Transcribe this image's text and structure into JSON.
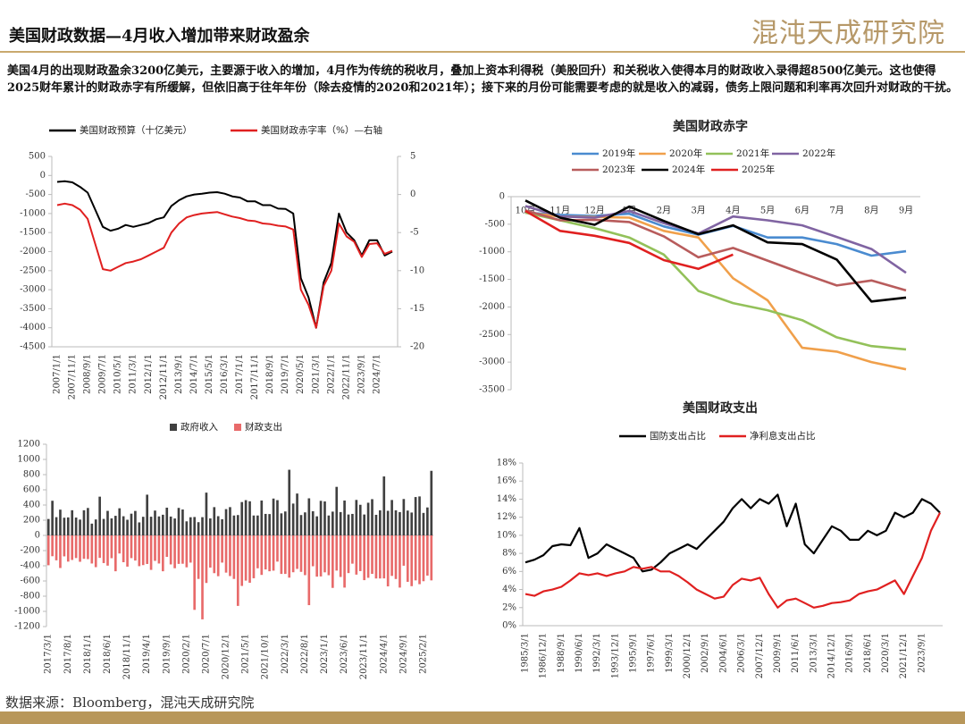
{
  "header": {
    "title": "美国财政数据—4月收入增加带来财政盈余",
    "logo": "混沌天成研究院"
  },
  "summary": "美国4月的出现财政盈余3200亿美元，主要源于收入的增加，4月作为传统的税收月，叠加上资本利得税（美股回升）和关税收入使得本月的财政收入录得超8500亿美元。这也使得2025财年累计的财政赤字有所缓解，但依旧高于往年年份（除去疫情的2020和2021年）；接下来的月份可能需要考虑的就是收入的减弱，债务上限问题和利率再次回升对财政的干扰。",
  "source": "数据来源：Bloomberg，混沌天成研究院",
  "chart_data": [
    {
      "type": "line",
      "categories": [
        "2007/1/1",
        null,
        "2007/11/1",
        null,
        "2008/9/1",
        null,
        "2009/7/1",
        null,
        "2010/5/1",
        null,
        "2011/3/1",
        null,
        "2012/1/1",
        null,
        "2012/11/1",
        null,
        "2013/9/1",
        null,
        "2014/7/1",
        null,
        "2015/5/1",
        null,
        "2016/3/1",
        null,
        "2017/1/1",
        null,
        "2017/11/1",
        null,
        "2018/9/1",
        null,
        "2019/7/1",
        null,
        "2020/5/1",
        null,
        "2021/3/1",
        null,
        "2022/1/1",
        null,
        "2022/11/1",
        null,
        "2023/9/1",
        null,
        "2024/7/1",
        null,
        null
      ],
      "series": [
        {
          "name": "美国财政预算（十亿美元）",
          "color": "#000000",
          "values": [
            -170,
            -150,
            -180,
            -300,
            -450,
            -900,
            -1350,
            -1450,
            -1400,
            -1300,
            -1350,
            -1300,
            -1250,
            -1150,
            -1100,
            -800,
            -650,
            -550,
            -500,
            -480,
            -450,
            -440,
            -480,
            -550,
            -580,
            -680,
            -680,
            -780,
            -780,
            -870,
            -880,
            -1000,
            -2700,
            -3200,
            -4000,
            -2800,
            -2300,
            -1000,
            -1500,
            -1700,
            -2100,
            -1700,
            -1700,
            -2100,
            -2000
          ]
        },
        {
          "name": "美国财政赤字率（%）—右轴",
          "color": "#e02020",
          "axis": "y2",
          "values": [
            -1.4,
            -1.2,
            -1.4,
            -2.0,
            -3.2,
            -6.5,
            -9.8,
            -10.0,
            -9.5,
            -9.0,
            -8.8,
            -8.5,
            -8.0,
            -7.5,
            -7.0,
            -5.0,
            -3.8,
            -3.0,
            -2.7,
            -2.5,
            -2.4,
            -2.3,
            -2.6,
            -2.9,
            -3.1,
            -3.4,
            -3.5,
            -3.8,
            -3.9,
            -4.1,
            -4.2,
            -4.6,
            -12.5,
            -14.5,
            -17.5,
            -12.0,
            -10.0,
            -3.8,
            -5.5,
            -6.2,
            -8.2,
            -6.5,
            -6.4,
            -7.8,
            -7.4
          ]
        }
      ],
      "ylim": [
        -4500,
        500
      ],
      "yticks": [
        500,
        0,
        -500,
        -1000,
        -1500,
        -2000,
        -2500,
        -3000,
        -3500,
        -4000,
        -4500
      ],
      "y2lim": [
        -20,
        5
      ],
      "y2ticks": [
        5,
        0,
        -5,
        -10,
        -15,
        -20
      ]
    },
    {
      "type": "line",
      "title": "美国财政赤字",
      "categories": [
        "10月",
        "11月",
        "12月",
        "1月",
        "2月",
        "3月",
        "4月",
        "5月",
        "6月",
        "7月",
        "8月",
        "9月"
      ],
      "series": [
        {
          "name": "2019年",
          "color": "#4a8bd0",
          "values": [
            -290,
            -330,
            -350,
            -310,
            -540,
            -690,
            -530,
            -740,
            -740,
            -860,
            -1070,
            -990
          ]
        },
        {
          "name": "2020年",
          "color": "#f0a04b",
          "values": [
            -290,
            -360,
            -370,
            -380,
            -620,
            -740,
            -1480,
            -1880,
            -2740,
            -2810,
            -3000,
            -3130
          ]
        },
        {
          "name": "2021年",
          "color": "#93c15a",
          "values": [
            -290,
            -430,
            -570,
            -740,
            -1050,
            -1710,
            -1930,
            -2060,
            -2240,
            -2550,
            -2710,
            -2770
          ]
        },
        {
          "name": "2022年",
          "color": "#8064a2",
          "values": [
            -170,
            -360,
            -380,
            -260,
            -480,
            -670,
            -360,
            -430,
            -520,
            -730,
            -950,
            -1380
          ]
        },
        {
          "name": "2023年",
          "color": "#b85c5c",
          "values": [
            -250,
            -430,
            -420,
            -460,
            -720,
            -1100,
            -930,
            -1160,
            -1390,
            -1610,
            -1520,
            -1700
          ]
        },
        {
          "name": "2024年",
          "color": "#000000",
          "values": [
            -70,
            -380,
            -510,
            -180,
            -440,
            -680,
            -520,
            -830,
            -860,
            -1140,
            -1900,
            -1830
          ]
        },
        {
          "name": "2025年",
          "color": "#e02020",
          "values": [
            -260,
            -620,
            -710,
            -840,
            -1150,
            -1310,
            -1050,
            null,
            null,
            null,
            null,
            null
          ]
        }
      ],
      "ylim": [
        -3500,
        0
      ],
      "yticks": [
        0,
        -500,
        -1000,
        -1500,
        -2000,
        -2500,
        -3000,
        -3500
      ]
    },
    {
      "type": "bar",
      "categories": [
        "2017/3/1",
        null,
        null,
        null,
        null,
        "2017/8/1",
        null,
        null,
        null,
        null,
        "2018/1/1",
        null,
        null,
        null,
        null,
        "2018/6/1",
        null,
        null,
        null,
        null,
        "2018/11/1",
        null,
        null,
        null,
        null,
        "2019/4/1",
        null,
        null,
        null,
        null,
        "2019/9/1",
        null,
        null,
        null,
        null,
        "2020/2/1",
        null,
        null,
        null,
        null,
        "2020/7/1",
        null,
        null,
        null,
        null,
        "2020/12/1",
        null,
        null,
        null,
        null,
        "2021/5/1",
        null,
        null,
        null,
        null,
        "2021/10/1",
        null,
        null,
        null,
        null,
        "2022/3/1",
        null,
        null,
        null,
        null,
        "2022/8/1",
        null,
        null,
        null,
        null,
        "2023/1/1",
        null,
        null,
        null,
        null,
        "2023/6/1",
        null,
        null,
        null,
        null,
        "2023/11/1",
        null,
        null,
        null,
        null,
        "2024/4/1",
        null,
        null,
        null,
        null,
        "2024/9/1",
        null,
        null,
        null,
        null,
        "2025/2/1",
        null,
        null
      ],
      "series": [
        {
          "name": "政府收入",
          "color": "#404040",
          "values": [
            216,
            456,
            240,
            339,
            233,
            237,
            331,
            235,
            208,
            331,
            361,
            155,
            210,
            510,
            217,
            323,
            224,
            258,
            357,
            252,
            206,
            286,
            322,
            171,
            245,
            536,
            246,
            327,
            250,
            272,
            365,
            248,
            223,
            362,
            341,
            185,
            239,
            242,
            174,
            240,
            563,
            224,
            372,
            253,
            213,
            346,
            372,
            262,
            268,
            439,
            464,
            449,
            262,
            262,
            459,
            283,
            281,
            485,
            464,
            290,
            315,
            864,
            419,
            551,
            268,
            303,
            488,
            318,
            251,
            455,
            447,
            262,
            313,
            639,
            307,
            459,
            275,
            283,
            467,
            403,
            275,
            430,
            477,
            271,
            330,
            776,
            324,
            466,
            330,
            307,
            479,
            327,
            301,
            505,
            513,
            296,
            368,
            850
          ]
        },
        {
          "name": "财政支出",
          "color": "#e86a6a",
          "values": [
            -393,
            -274,
            -328,
            -429,
            -276,
            -345,
            -323,
            -298,
            -347,
            -308,
            -312,
            -370,
            -418,
            -296,
            -364,
            -398,
            -300,
            -472,
            -238,
            -353,
            -411,
            -299,
            -331,
            -405,
            -391,
            -376,
            -454,
            -335,
            -370,
            -472,
            -283,
            -382,
            -432,
            -375,
            -373,
            -420,
            -358,
            -980,
            -573,
            -1105,
            -626,
            -424,
            -497,
            -537,
            -358,
            -490,
            -535,
            -573,
            -928,
            -665,
            -595,
            -623,
            -564,
            -433,
            -520,
            -448,
            -472,
            -464,
            -345,
            -507,
            -507,
            -556,
            -485,
            -441,
            -480,
            -523,
            -918,
            -406,
            -543,
            -540,
            -486,
            -524,
            -691,
            -463,
            -547,
            -687,
            -496,
            -372,
            -516,
            -470,
            -589,
            -558,
            -506,
            -567,
            -567,
            -566,
            -671,
            -533,
            -574,
            -687,
            -399,
            -611,
            -668,
            -592,
            -642,
            -603,
            -529,
            -592
          ]
        }
      ],
      "ylim": [
        -1200,
        1200
      ],
      "yticks": [
        1200,
        1000,
        800,
        600,
        400,
        200,
        0,
        -200,
        -400,
        -600,
        -800,
        -1000,
        -1200
      ]
    },
    {
      "type": "line",
      "title": "美国财政支出",
      "categories": [
        "1985/3/1",
        null,
        "1986/12/1",
        null,
        "1988/9/1",
        null,
        "1990/6/1",
        null,
        "1992/3/1",
        null,
        "1993/12/1",
        null,
        "1995/9/1",
        null,
        "1997/6/1",
        null,
        "1999/3/1",
        null,
        "2000/12/1",
        null,
        "2002/9/1",
        null,
        "2004/6/1",
        null,
        "2006/3/1",
        null,
        "2007/12/1",
        null,
        "2009/9/1",
        null,
        "2011/6/1",
        null,
        "2013/3/1",
        null,
        "2014/12/1",
        null,
        "2016/9/1",
        null,
        "2018/6/1",
        null,
        "2020/3/1",
        null,
        "2021/12/1",
        null,
        "2023/9/1",
        null,
        null
      ],
      "series": [
        {
          "name": "国防支出占比",
          "color": "#000000",
          "values": [
            7.0,
            7.3,
            7.8,
            8.8,
            9.0,
            8.9,
            10.8,
            7.5,
            8.0,
            9.0,
            8.5,
            8.0,
            7.5,
            6.0,
            6.2,
            7.0,
            8.0,
            8.5,
            9.0,
            8.5,
            9.5,
            10.5,
            11.5,
            13.0,
            14.0,
            13.0,
            14.0,
            13.5,
            14.5,
            11.0,
            13.5,
            9.0,
            8.0,
            9.5,
            11.0,
            10.5,
            9.5,
            9.5,
            10.5,
            10.0,
            10.5,
            12.5,
            12.0,
            12.5,
            14.0,
            13.5,
            12.5
          ]
        },
        {
          "name": "净利息支出占比",
          "color": "#e02020",
          "values": [
            3.5,
            3.3,
            3.8,
            4.0,
            4.3,
            5.0,
            5.8,
            5.6,
            5.8,
            5.5,
            5.8,
            6.0,
            6.5,
            6.3,
            6.5,
            6.0,
            6.0,
            5.5,
            4.8,
            4.0,
            3.5,
            3.0,
            3.2,
            4.5,
            5.2,
            5.0,
            5.3,
            3.5,
            2.0,
            2.8,
            3.0,
            2.5,
            2.0,
            2.2,
            2.5,
            2.6,
            2.8,
            3.5,
            3.8,
            4.0,
            4.5,
            5.0,
            3.5,
            5.5,
            7.5,
            10.5,
            12.5
          ]
        }
      ],
      "ylim": [
        0,
        18
      ],
      "yticks": [
        {
          "value": 18,
          "label": "18%"
        },
        {
          "value": 16,
          "label": "16%"
        },
        {
          "value": 14,
          "label": "14%"
        },
        {
          "value": 12,
          "label": "12%"
        },
        {
          "value": 10,
          "label": "10%"
        },
        {
          "value": 8,
          "label": "8%"
        },
        {
          "value": 6,
          "label": "6%"
        },
        {
          "value": 4,
          "label": "4%"
        },
        {
          "value": 2,
          "label": "2%"
        },
        {
          "value": 0,
          "label": "0%"
        }
      ]
    }
  ]
}
